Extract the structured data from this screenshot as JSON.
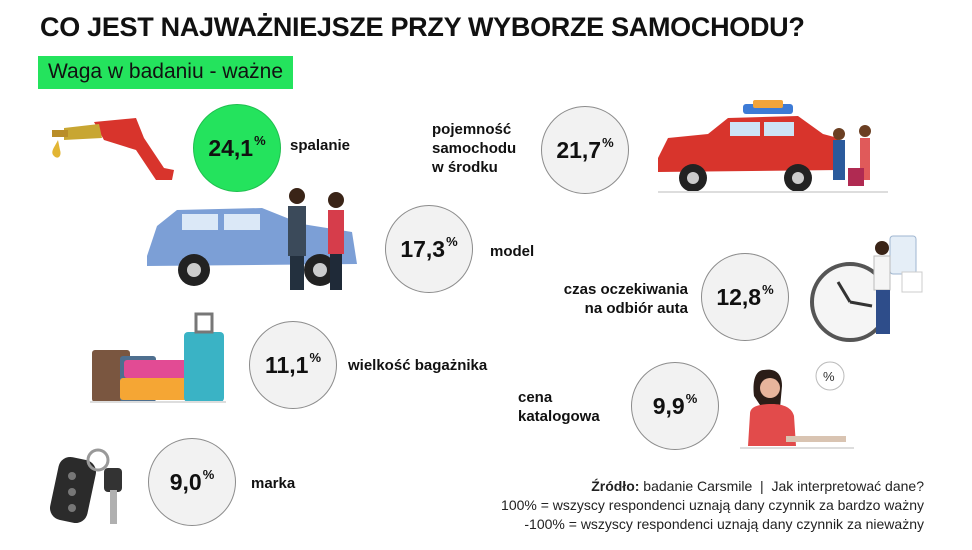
{
  "title": "CO JEST NAJWAŻNIEJSZE PRZY WYBORZE SAMOCHODU?",
  "subtitle": "Waga w badaniu - ważne",
  "factors": [
    {
      "value": "24,1",
      "unit": "%",
      "label": "spalanie",
      "icon": "fuel-nozzle-icon",
      "highlight": true
    },
    {
      "value": "21,7",
      "unit": "%",
      "label": "pojemność\nsamochodu\nw środku",
      "icon": "family-car-icon",
      "highlight": false
    },
    {
      "value": "17,3",
      "unit": "%",
      "label": "model",
      "icon": "car-handshake-icon",
      "highlight": false
    },
    {
      "value": "12,8",
      "unit": "%",
      "label": "czas oczekiwania\nna odbiór auta",
      "icon": "clock-waiting-icon",
      "highlight": false
    },
    {
      "value": "11,1",
      "unit": "%",
      "label": "wielkość bagażnika",
      "icon": "suitcases-icon",
      "highlight": false
    },
    {
      "value": "9,9",
      "unit": "%",
      "label": "cena\nkatalogowa",
      "icon": "woman-price-icon",
      "highlight": false
    },
    {
      "value": "9,0",
      "unit": "%",
      "label": "marka",
      "icon": "car-keys-icon",
      "highlight": false
    }
  ],
  "footer": {
    "source_label": "Źródło:",
    "source_text": " badanie Carsmile  |  Jak interpretować dane?",
    "line2": "100% = wszyscy respondenci uznają dany czynnik za bardzo ważny",
    "line3": "-100% = wszyscy respondenci uznają dany czynnik za nieważny"
  },
  "colors": {
    "accent": "#24e35d",
    "circle_bg": "#f2f2f2",
    "car_red": "#d32f2f",
    "car_blue": "#7c9fd6"
  }
}
